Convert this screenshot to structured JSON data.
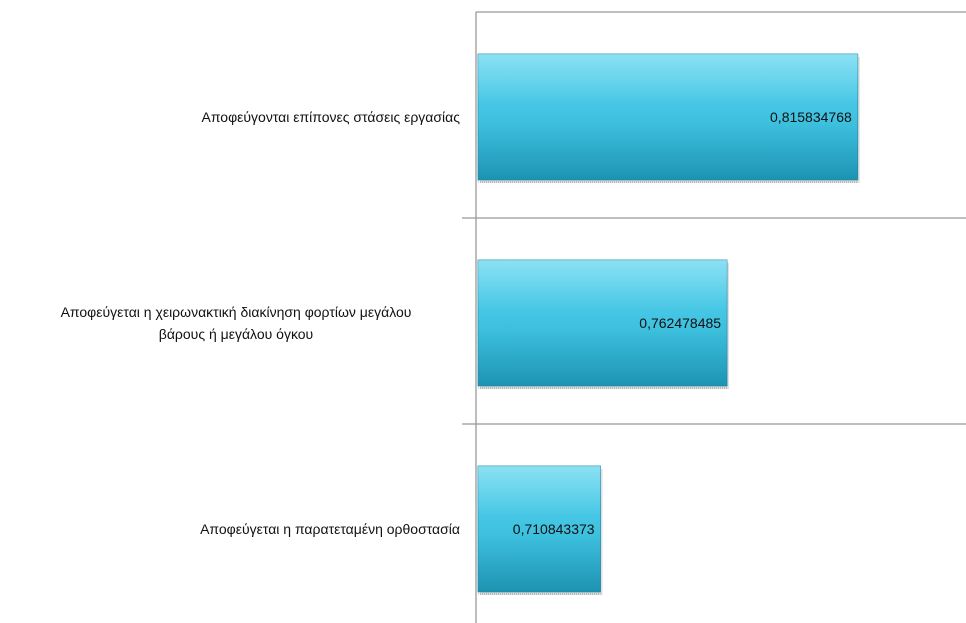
{
  "chart_data": {
    "type": "bar",
    "orientation": "horizontal",
    "title": "",
    "xlabel": "",
    "ylabel": "",
    "categories": [
      "Αποφεύγονται επίπονες στάσεις εργασίας",
      "Αποφεύγεται η χειρωνακτική διακίνηση φορτίων μεγάλου βάρους ή μεγάλου όγκου",
      "Αποφεύγεται η παρατεταμένη ορθοστασία"
    ],
    "category_label_lines": [
      [
        "Αποφεύγονται επίπονες στάσεις εργασίας"
      ],
      [
        "Αποφεύγεται η χειρωνακτική διακίνηση φορτίων μεγάλου",
        "βάρους ή μεγάλου όγκου"
      ],
      [
        "Αποφεύγεται η παρατεταμένη ορθοστασία"
      ]
    ],
    "values": [
      0.815834768,
      0.762478485,
      0.710843373
    ],
    "data_labels": [
      "0,815834768",
      "0,762478485",
      "0,710843373"
    ],
    "xlim": [
      0.66,
      0.86
    ],
    "grid": false,
    "legend": "none",
    "colors": {
      "bar_top": "#4dd0ec",
      "bar_bottom": "#1e9fc0",
      "bar_edge": "#2a8fb0",
      "axis": "#999999"
    }
  }
}
